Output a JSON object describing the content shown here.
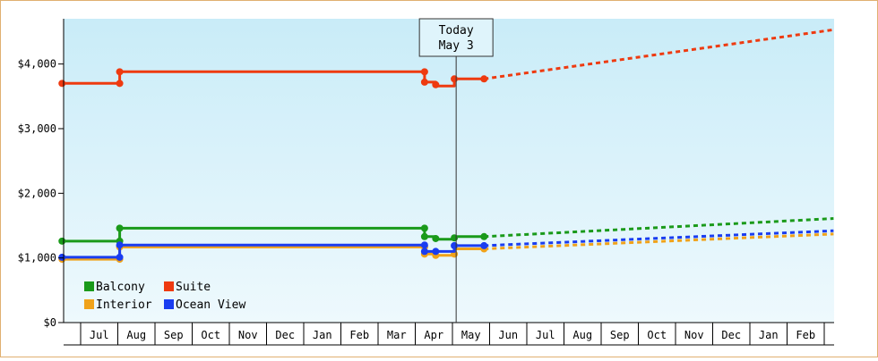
{
  "chart_data": {
    "type": "line",
    "title": "",
    "xlabel": "",
    "ylabel": "",
    "ylim": [
      0,
      4700
    ],
    "y_ticks": [
      {
        "value": 0,
        "label": "$0"
      },
      {
        "value": 1000,
        "label": "$1,000"
      },
      {
        "value": 2000,
        "label": "$2,000"
      },
      {
        "value": 3000,
        "label": "$3,000"
      },
      {
        "value": 4000,
        "label": "$4,000"
      }
    ],
    "x_months": [
      "Jul",
      "Aug",
      "Sep",
      "Oct",
      "Nov",
      "Dec",
      "Jan",
      "Feb",
      "Mar",
      "Apr",
      "May",
      "Jun",
      "Jul",
      "Aug",
      "Sep",
      "Oct",
      "Nov",
      "Dec",
      "Jan",
      "Feb"
    ],
    "x_range_months": [
      -0.5,
      20.25
    ],
    "today": {
      "line1": "Today",
      "line2": "May 3",
      "x": 10.1
    },
    "grid": false,
    "legend_position": "bottom-left",
    "series": [
      {
        "name": "Balcony",
        "color": "#1a9a1a",
        "history": [
          [
            -0.5,
            1260
          ],
          [
            1.05,
            1260
          ],
          [
            1.05,
            1460
          ],
          [
            9.25,
            1460
          ],
          [
            9.25,
            1330
          ],
          [
            9.55,
            1330
          ],
          [
            9.55,
            1290
          ],
          [
            10.05,
            1290
          ],
          [
            10.05,
            1330
          ],
          [
            10.85,
            1330
          ]
        ],
        "markers": [
          [
            -0.5,
            1260
          ],
          [
            1.05,
            1260
          ],
          [
            1.05,
            1460
          ],
          [
            9.25,
            1460
          ],
          [
            9.25,
            1330
          ],
          [
            9.55,
            1300
          ],
          [
            10.05,
            1310
          ],
          [
            10.85,
            1330
          ]
        ],
        "forecast": [
          [
            10.85,
            1330
          ],
          [
            20.25,
            1610
          ]
        ]
      },
      {
        "name": "Suite",
        "color": "#ee3a10",
        "history": [
          [
            -0.5,
            3700
          ],
          [
            1.05,
            3700
          ],
          [
            1.05,
            3880
          ],
          [
            9.25,
            3880
          ],
          [
            9.25,
            3720
          ],
          [
            9.55,
            3720
          ],
          [
            9.55,
            3660
          ],
          [
            10.05,
            3660
          ],
          [
            10.05,
            3770
          ],
          [
            10.85,
            3770
          ]
        ],
        "markers": [
          [
            -0.5,
            3700
          ],
          [
            1.05,
            3700
          ],
          [
            1.05,
            3880
          ],
          [
            9.25,
            3880
          ],
          [
            9.25,
            3720
          ],
          [
            9.55,
            3680
          ],
          [
            10.05,
            3770
          ],
          [
            10.85,
            3770
          ]
        ],
        "forecast": [
          [
            10.85,
            3770
          ],
          [
            20.25,
            4530
          ]
        ]
      },
      {
        "name": "Interior",
        "color": "#f0a21a",
        "history": [
          [
            -0.5,
            980
          ],
          [
            1.05,
            980
          ],
          [
            1.05,
            1170
          ],
          [
            9.25,
            1170
          ],
          [
            9.25,
            1060
          ],
          [
            9.55,
            1060
          ],
          [
            9.55,
            1040
          ],
          [
            10.05,
            1040
          ],
          [
            10.05,
            1140
          ],
          [
            10.85,
            1140
          ]
        ],
        "markers": [
          [
            -0.5,
            980
          ],
          [
            1.05,
            980
          ],
          [
            1.05,
            1170
          ],
          [
            9.25,
            1170
          ],
          [
            9.25,
            1060
          ],
          [
            9.55,
            1040
          ],
          [
            10.05,
            1060
          ],
          [
            10.85,
            1140
          ]
        ],
        "forecast": [
          [
            10.85,
            1140
          ],
          [
            20.25,
            1370
          ]
        ]
      },
      {
        "name": "Ocean View",
        "color": "#1a3df0",
        "history": [
          [
            -0.5,
            1010
          ],
          [
            1.05,
            1010
          ],
          [
            1.05,
            1200
          ],
          [
            9.25,
            1200
          ],
          [
            9.25,
            1100
          ],
          [
            9.55,
            1100
          ],
          [
            9.55,
            1100
          ],
          [
            10.05,
            1100
          ],
          [
            10.05,
            1190
          ],
          [
            10.85,
            1190
          ]
        ],
        "markers": [
          [
            -0.5,
            1010
          ],
          [
            1.05,
            1010
          ],
          [
            1.05,
            1200
          ],
          [
            9.25,
            1200
          ],
          [
            9.25,
            1100
          ],
          [
            9.55,
            1100
          ],
          [
            10.05,
            1190
          ],
          [
            10.85,
            1190
          ]
        ],
        "forecast": [
          [
            10.85,
            1190
          ],
          [
            20.25,
            1420
          ]
        ]
      }
    ],
    "legend": [
      {
        "name": "Balcony",
        "color": "#1a9a1a"
      },
      {
        "name": "Suite",
        "color": "#ee3a10"
      },
      {
        "name": "Interior",
        "color": "#f0a21a"
      },
      {
        "name": "Ocean View",
        "color": "#1a3df0"
      }
    ]
  }
}
